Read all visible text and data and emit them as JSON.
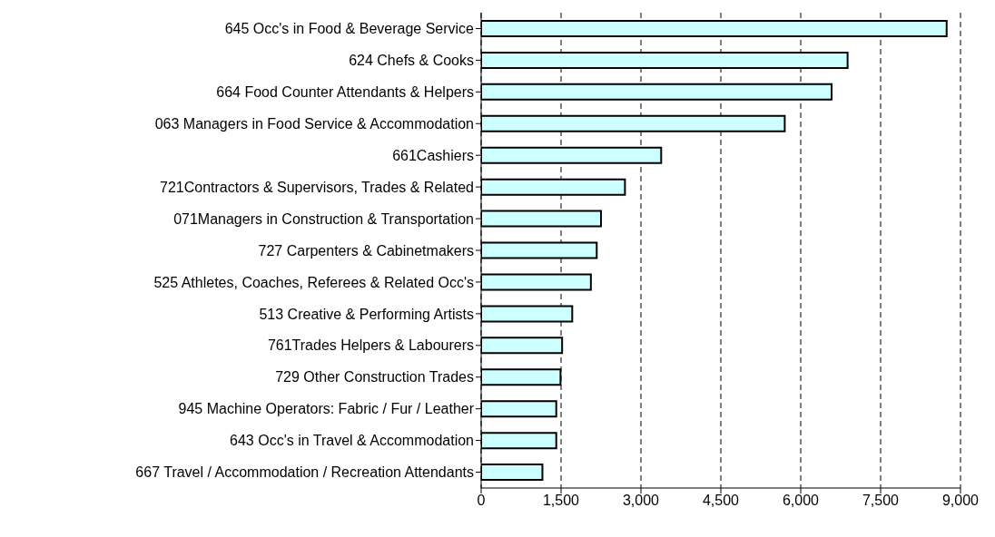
{
  "chart_data": {
    "type": "bar",
    "orientation": "horizontal",
    "categories": [
      "645 Occ's in Food & Beverage Service",
      "624 Chefs & Cooks",
      "664 Food Counter Attendants & Helpers",
      "063 Managers in Food Service & Accommodation",
      "661Cashiers",
      "721Contractors & Supervisors, Trades & Related",
      "071Managers in Construction & Transportation",
      "727 Carpenters & Cabinetmakers",
      "525 Athletes, Coaches, Referees & Related Occ's",
      "513 Creative & Performing Artists",
      "761Trades Helpers & Labourers",
      "729 Other Construction Trades",
      "945 Machine Operators: Fabric / Fur / Leather",
      "643 Occ's in Travel & Accommodation",
      "667 Travel / Accommodation / Recreation Attendants"
    ],
    "values": [
      8740,
      6880,
      6580,
      5700,
      3380,
      2700,
      2250,
      2170,
      2060,
      1710,
      1520,
      1490,
      1410,
      1410,
      1150
    ],
    "color": "#ccffff",
    "xlim": [
      0,
      9000
    ],
    "xticks": [
      0,
      {
        "value": 1500,
        "label": "1,500"
      },
      {
        "value": 3000,
        "label": "3,000"
      },
      {
        "value": 4500,
        "label": "4,500"
      },
      {
        "value": 6000,
        "label": "6,000"
      },
      {
        "value": 7500,
        "label": "7,500"
      },
      {
        "value": 9000,
        "label": "9,000"
      }
    ],
    "grid": "x",
    "line_style": "dashed"
  }
}
